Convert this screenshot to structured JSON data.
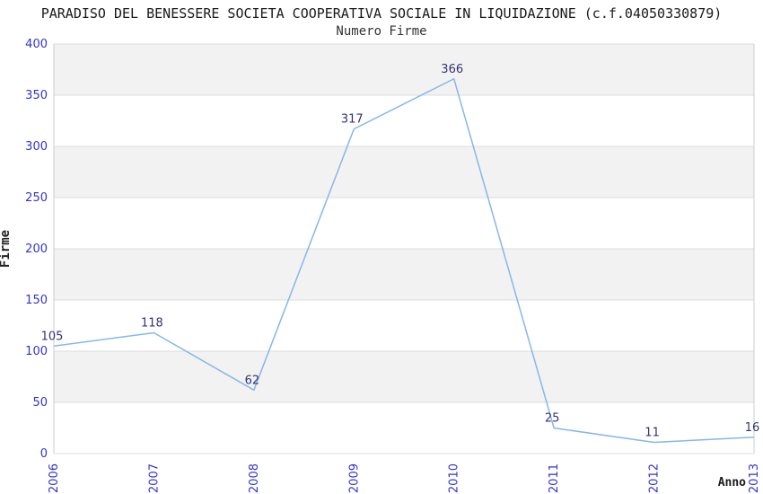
{
  "header": {
    "title": "PARADISO DEL BENESSERE SOCIETA COOPERATIVA SOCIALE IN LIQUIDAZIONE (c.f.04050330879)",
    "subtitle": "Numero Firme"
  },
  "chart_data": {
    "type": "line",
    "title": "PARADISO DEL BENESSERE SOCIETA COOPERATIVA SOCIALE IN LIQUIDAZIONE (c.f.04050330879)",
    "subtitle": "Numero Firme",
    "categories": [
      "2006",
      "2007",
      "2008",
      "2009",
      "2010",
      "2011",
      "2012",
      "2013"
    ],
    "values": [
      105,
      118,
      62,
      317,
      366,
      25,
      11,
      16
    ],
    "xlabel": "Anno",
    "ylabel": "Firme",
    "ylim": [
      0,
      400
    ],
    "ytick_step": 50,
    "yticks": [
      0,
      50,
      100,
      150,
      200,
      250,
      300,
      350,
      400
    ],
    "grid": "horizontal gridlines with alternating gray/white bands",
    "legend": "none",
    "point_labels_shown": true,
    "colors": {
      "line": "#86b7e8",
      "tick_label": "#3333cc",
      "data_label": "#333377",
      "band_gray": "#f2f2f2",
      "band_white": "#ffffff",
      "gridline": "#dcdcdc",
      "plot_border": "#cccccc",
      "title_text": "#1a1a1a",
      "background": "#ffffff"
    }
  }
}
